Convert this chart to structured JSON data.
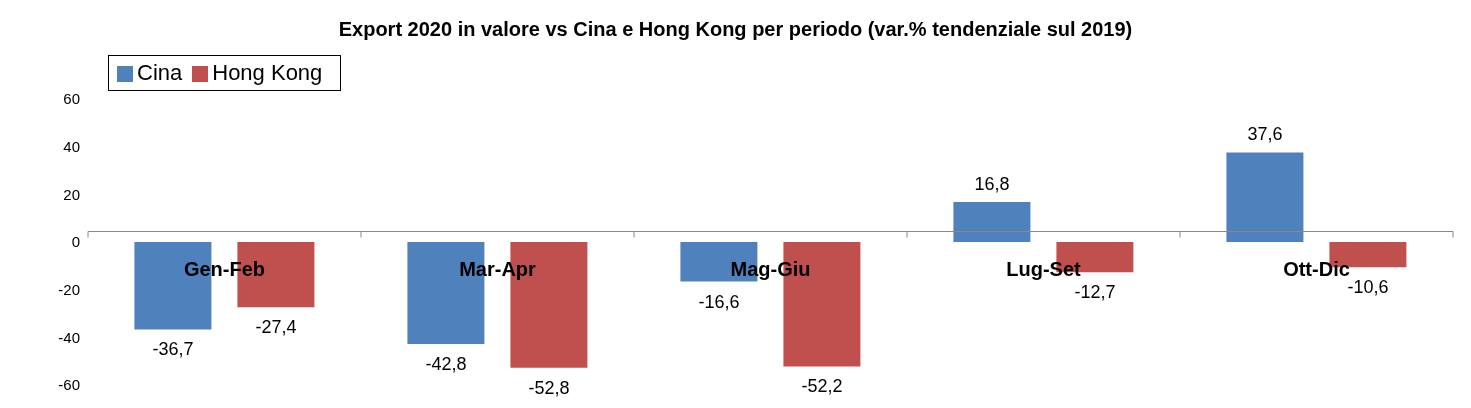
{
  "chart_data": {
    "type": "bar",
    "title": "Export 2020 in valore vs Cina e Hong Kong per periodo (var.% tendenziale sul 2019)",
    "categories": [
      "Gen-Feb",
      "Mar-Apr",
      "Mag-Giu",
      "Lug-Set",
      "Ott-Dic"
    ],
    "series": [
      {
        "name": "Cina",
        "color": "#4f81bd",
        "values": [
          -36.7,
          -42.8,
          -16.6,
          16.8,
          37.6
        ],
        "value_labels": [
          "-36,7",
          "-42,8",
          "-16,6",
          "16,8",
          "37,6"
        ]
      },
      {
        "name": "Hong Kong",
        "color": "#c0504d",
        "values": [
          -27.4,
          -52.8,
          -52.2,
          -12.7,
          -10.6
        ],
        "value_labels": [
          "-27,4",
          "-52,8",
          "-52,2",
          "-12,7",
          "-10,6"
        ]
      }
    ],
    "ylim": [
      -60,
      60
    ],
    "yticks": [
      -60,
      -40,
      -20,
      0,
      20,
      40,
      60
    ],
    "legend": "top left"
  }
}
